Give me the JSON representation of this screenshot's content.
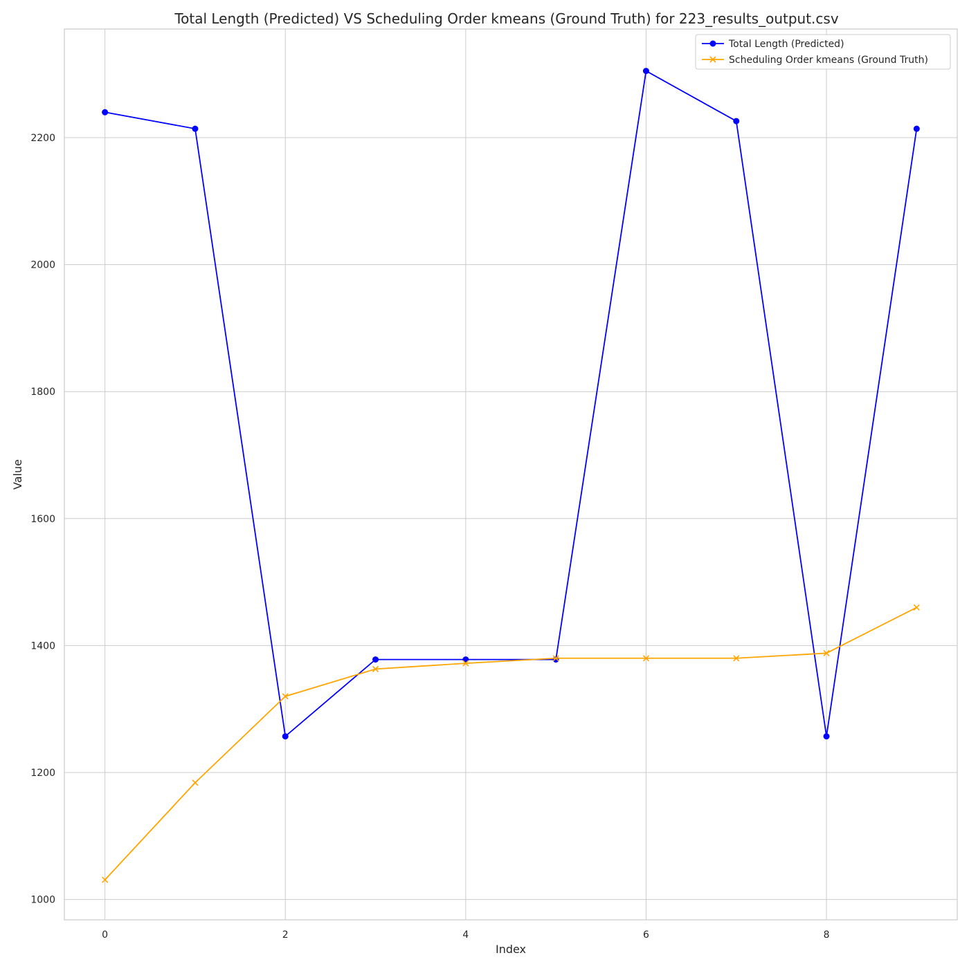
{
  "chart_data": {
    "type": "line",
    "title": "Total Length (Predicted) VS Scheduling Order kmeans (Ground Truth) for 223_results_output.csv",
    "xlabel": "Index",
    "ylabel": "Value",
    "x": [
      0,
      1,
      2,
      3,
      4,
      5,
      6,
      7,
      8,
      9
    ],
    "xlim": [
      -0.45,
      9.45
    ],
    "ylim": [
      968,
      2371
    ],
    "xticks": [
      0,
      2,
      4,
      6,
      8
    ],
    "yticks": [
      1000,
      1200,
      1400,
      1600,
      1800,
      2000,
      2200
    ],
    "grid": true,
    "legend_position": "top-right",
    "series": [
      {
        "name": "Total Length (Predicted)",
        "color": "#0000ff",
        "marker": "circle",
        "values": [
          2240,
          2214,
          1257,
          1378,
          1378,
          1378,
          2305,
          2226,
          1257,
          2214
        ]
      },
      {
        "name": "Scheduling Order kmeans (Ground Truth)",
        "color": "#ffa500",
        "marker": "x",
        "values": [
          1031,
          1184,
          1320,
          1363,
          1372,
          1380,
          1380,
          1380,
          1388,
          1460
        ]
      }
    ]
  }
}
